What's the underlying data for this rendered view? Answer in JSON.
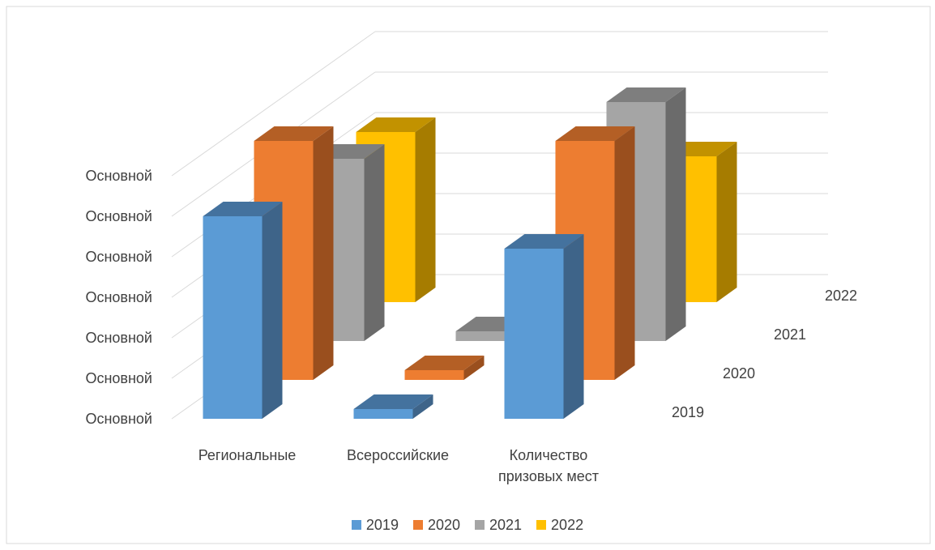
{
  "chart_data": {
    "type": "bar",
    "subtype": "3d-clustered-column",
    "categories": [
      "Региональные",
      "Всероссийские",
      "Количество призовых мест"
    ],
    "category_label_lines": [
      [
        "Региональные"
      ],
      [
        "Всероссийские"
      ],
      [
        "Количество",
        "призовых мест"
      ]
    ],
    "depth_labels": [
      "2019",
      "2020",
      "2021",
      "2022"
    ],
    "series": [
      {
        "name": "2019",
        "color": "#5B9BD5",
        "side_color": "#3E6489",
        "top_color": "#44729E",
        "values": [
          5.0,
          0.0,
          4.2
        ]
      },
      {
        "name": "2020",
        "color": "#ED7D31",
        "side_color": "#9A4F1E",
        "top_color": "#B45F25",
        "values": [
          5.9,
          0.0,
          5.9
        ]
      },
      {
        "name": "2021",
        "color": "#A5A5A5",
        "side_color": "#6B6B6B",
        "top_color": "#7E7E7E",
        "values": [
          4.5,
          0.0,
          5.9
        ]
      },
      {
        "name": "2022",
        "color": "#FFC000",
        "side_color": "#A67C00",
        "top_color": "#C29200",
        "values": [
          4.2,
          0.0,
          3.6
        ]
      }
    ],
    "ytick_labels": [
      "Основной",
      "Основной",
      "Основной",
      "Основной",
      "Основной",
      "Основной",
      "Основной"
    ],
    "ylim": [
      0,
      6
    ],
    "grid": true,
    "legend": "bottom"
  }
}
